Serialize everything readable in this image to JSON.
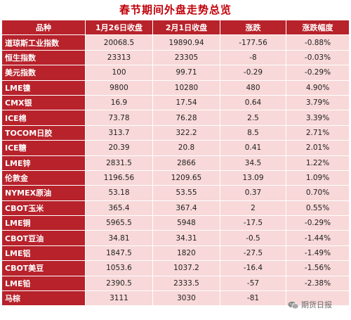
{
  "title": "春节期间外盘走势总览",
  "headers": [
    "品种",
    "1月26日收盘",
    "2月1日收盘",
    "涨跌",
    "涨跌幅度"
  ],
  "rows": [
    [
      "道琼斯工业指数",
      "20068.5",
      "19890.94",
      "-177.56",
      "-0.88%"
    ],
    [
      "恒生指数",
      "23313",
      "23305",
      "-8",
      "-0.03%"
    ],
    [
      "美元指数",
      "100",
      "99.71",
      "-0.29",
      "-0.29%"
    ],
    [
      "LME镍",
      "9800",
      "10280",
      "480",
      "4.90%"
    ],
    [
      "CMX银",
      "16.9",
      "17.54",
      "0.64",
      "3.79%"
    ],
    [
      "ICE棉",
      "73.78",
      "76.28",
      "2.5",
      "3.39%"
    ],
    [
      "TOCOM日胶",
      "313.7",
      "322.2",
      "8.5",
      "2.71%"
    ],
    [
      "ICE糖",
      "20.39",
      "20.8",
      "0.41",
      "2.01%"
    ],
    [
      "LME锌",
      "2831.5",
      "2866",
      "34.5",
      "1.22%"
    ],
    [
      "伦敦金",
      "1196.56",
      "1209.65",
      "13.09",
      "1.09%"
    ],
    [
      "NYMEX原油",
      "53.18",
      "53.55",
      "0.37",
      "0.70%"
    ],
    [
      "CBOT玉米",
      "365.4",
      "367.4",
      "2",
      "0.55%"
    ],
    [
      "LME铜",
      "5965.5",
      "5948",
      "-17.5",
      "-0.29%"
    ],
    [
      "CBOT豆油",
      "34.81",
      "34.31",
      "-0.5",
      "-1.44%"
    ],
    [
      "LME铝",
      "1847.5",
      "1820",
      "-27.5",
      "-1.49%"
    ],
    [
      "CBOT美豆",
      "1053.6",
      "1037.2",
      "-16.4",
      "-1.56%"
    ],
    [
      "LME铅",
      "2390.5",
      "2333.5",
      "-57",
      "-2.38%"
    ],
    [
      "马棕",
      "3111",
      "3030",
      "-81",
      ""
    ]
  ],
  "watermark": "期货日报",
  "icons": {
    "watermark": "wechat-icon"
  }
}
